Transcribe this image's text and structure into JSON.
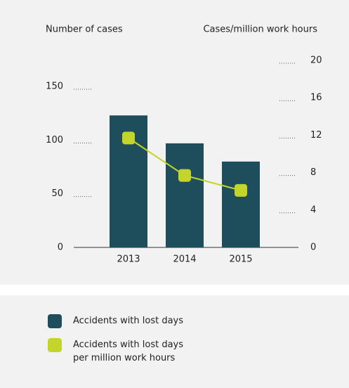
{
  "chart_data": {
    "type": "bar_line",
    "y_label": "Number of cases",
    "y2_label": "Cases/million work hours",
    "categories": [
      "2013",
      "2014",
      "2015"
    ],
    "series": [
      {
        "name": "Accidents with lost days",
        "type": "bar",
        "color": "#1e4d5c",
        "values": [
          123,
          97,
          80
        ]
      },
      {
        "name": "Accidents with lost days per million work hours",
        "type": "line",
        "axis": "y2",
        "color": "#c3d52b",
        "values": [
          11.7,
          7.7,
          6.1
        ]
      }
    ],
    "ylim": [
      0,
      150
    ],
    "yticks": [
      0,
      50,
      100,
      150
    ],
    "y2lim": [
      0,
      20
    ],
    "y2ticks": [
      0,
      4,
      8,
      12,
      16,
      20
    ]
  }
}
